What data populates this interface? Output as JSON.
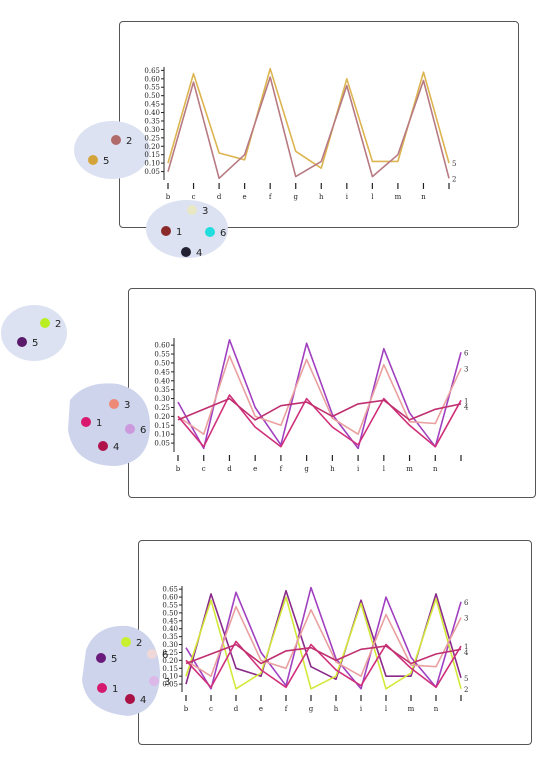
{
  "colors": {
    "s1": "#cc3355",
    "s2": "#e88a78",
    "s3": "#bb44bb",
    "s4": "#cc3377",
    "s5": "#d4a43a",
    "s6": "#a855c4",
    "blob": "#c8d0ea"
  },
  "chart_data": [
    {
      "type": "line",
      "categories": [
        "b",
        "c",
        "d",
        "e",
        "f",
        "g",
        "h",
        "i",
        "l",
        "m",
        "n",
        ""
      ],
      "ylim": [
        0,
        0.67
      ],
      "yticks": [
        "0.05",
        "0.10",
        "0.15",
        "0.20",
        "0.25",
        "0.30",
        "0.35",
        "0.40",
        "0.45",
        "0.50",
        "0.55",
        "0.60",
        "0.65"
      ],
      "series": [
        {
          "name": "5",
          "color": "#dcb450",
          "values": [
            0.1,
            0.63,
            0.16,
            0.12,
            0.66,
            0.17,
            0.07,
            0.6,
            0.11,
            0.11,
            0.64,
            0.1
          ]
        },
        {
          "name": "2",
          "color": "#b87a82",
          "values": [
            0.05,
            0.58,
            0.01,
            0.15,
            0.61,
            0.02,
            0.11,
            0.56,
            0.02,
            0.15,
            0.59,
            0.01
          ]
        }
      ],
      "end_labels": [
        "5",
        "2"
      ],
      "legend": [
        {
          "label": "2",
          "color": "#b06a6a"
        },
        {
          "label": "5",
          "color": "#d4a43a"
        },
        {
          "label": "3",
          "color": "#e8e8c4"
        },
        {
          "label": "1",
          "color": "#8b2a2a"
        },
        {
          "label": "6",
          "color": "#22dddd"
        },
        {
          "label": "4",
          "color": "#222233"
        }
      ]
    },
    {
      "type": "line",
      "categories": [
        "b",
        "c",
        "d",
        "e",
        "f",
        "g",
        "h",
        "i",
        "l",
        "m",
        "n",
        ""
      ],
      "ylim": [
        0,
        0.64
      ],
      "yticks": [
        "0.05",
        "0.10",
        "0.15",
        "0.20",
        "0.25",
        "0.30",
        "0.35",
        "0.40",
        "0.45",
        "0.50",
        "0.55",
        "0.60"
      ],
      "series": [
        {
          "name": "6",
          "color": "#a040c0",
          "values": [
            0.28,
            0.02,
            0.63,
            0.25,
            0.04,
            0.61,
            0.21,
            0.02,
            0.58,
            0.22,
            0.03,
            0.56
          ]
        },
        {
          "name": "3",
          "color": "#eaa0a0",
          "values": [
            0.2,
            0.1,
            0.54,
            0.2,
            0.15,
            0.52,
            0.19,
            0.1,
            0.49,
            0.17,
            0.16,
            0.47
          ]
        },
        {
          "name": "1",
          "color": "#d0307a",
          "values": [
            0.2,
            0.03,
            0.32,
            0.14,
            0.03,
            0.3,
            0.14,
            0.04,
            0.3,
            0.15,
            0.03,
            0.29
          ]
        },
        {
          "name": "4",
          "color": "#c03070",
          "values": [
            0.18,
            0.24,
            0.3,
            0.18,
            0.26,
            0.28,
            0.2,
            0.27,
            0.29,
            0.18,
            0.24,
            0.27
          ]
        }
      ],
      "end_labels": [
        "6",
        "3",
        "1",
        "4"
      ],
      "legend": [
        {
          "label": "2",
          "color": "#b8ee22"
        },
        {
          "label": "5",
          "color": "#5a1a6a"
        },
        {
          "label": "3",
          "color": "#ee8877"
        },
        {
          "label": "1",
          "color": "#d8196e"
        },
        {
          "label": "6",
          "color": "#cc99dd"
        },
        {
          "label": "4",
          "color": "#b0124a"
        }
      ]
    },
    {
      "type": "line",
      "categories": [
        "b",
        "c",
        "d",
        "e",
        "f",
        "g",
        "h",
        "i",
        "l",
        "m",
        "n",
        ""
      ],
      "ylim": [
        0,
        0.67
      ],
      "yticks": [
        "0.05",
        "0.10",
        "0.15",
        "0.20",
        "0.25",
        "0.30",
        "0.35",
        "0.40",
        "0.45",
        "0.50",
        "0.55",
        "0.60",
        "0.65"
      ],
      "series": [
        {
          "name": "6",
          "color": "#a040c0",
          "values": [
            0.28,
            0.02,
            0.63,
            0.25,
            0.04,
            0.66,
            0.21,
            0.02,
            0.6,
            0.22,
            0.03,
            0.57
          ]
        },
        {
          "name": "5",
          "color": "#8a2a8a",
          "values": [
            0.05,
            0.62,
            0.15,
            0.1,
            0.64,
            0.16,
            0.08,
            0.58,
            0.1,
            0.1,
            0.62,
            0.09
          ]
        },
        {
          "name": "2",
          "color": "#d4e83a",
          "values": [
            0.1,
            0.58,
            0.02,
            0.12,
            0.6,
            0.02,
            0.1,
            0.56,
            0.02,
            0.12,
            0.59,
            0.02
          ]
        },
        {
          "name": "3",
          "color": "#eaa0a0",
          "values": [
            0.2,
            0.1,
            0.54,
            0.2,
            0.15,
            0.52,
            0.19,
            0.1,
            0.49,
            0.17,
            0.16,
            0.47
          ]
        },
        {
          "name": "1",
          "color": "#d0307a",
          "values": [
            0.2,
            0.03,
            0.32,
            0.14,
            0.03,
            0.3,
            0.14,
            0.04,
            0.3,
            0.15,
            0.03,
            0.29
          ]
        },
        {
          "name": "4",
          "color": "#c03070",
          "values": [
            0.18,
            0.24,
            0.3,
            0.18,
            0.26,
            0.28,
            0.2,
            0.27,
            0.29,
            0.18,
            0.24,
            0.27
          ]
        }
      ],
      "end_labels": [
        "6",
        "3",
        "1",
        "4",
        "5",
        "2"
      ],
      "legend": [
        {
          "label": "2",
          "color": "#c8f030"
        },
        {
          "label": "5",
          "color": "#6a1a7a"
        },
        {
          "label": "6",
          "color": "#f0d8d8"
        },
        {
          "label": "1",
          "color": "#d4196e"
        },
        {
          "label": "3",
          "color": "#dcb8e8"
        },
        {
          "label": "4",
          "color": "#aa1144"
        }
      ]
    }
  ]
}
